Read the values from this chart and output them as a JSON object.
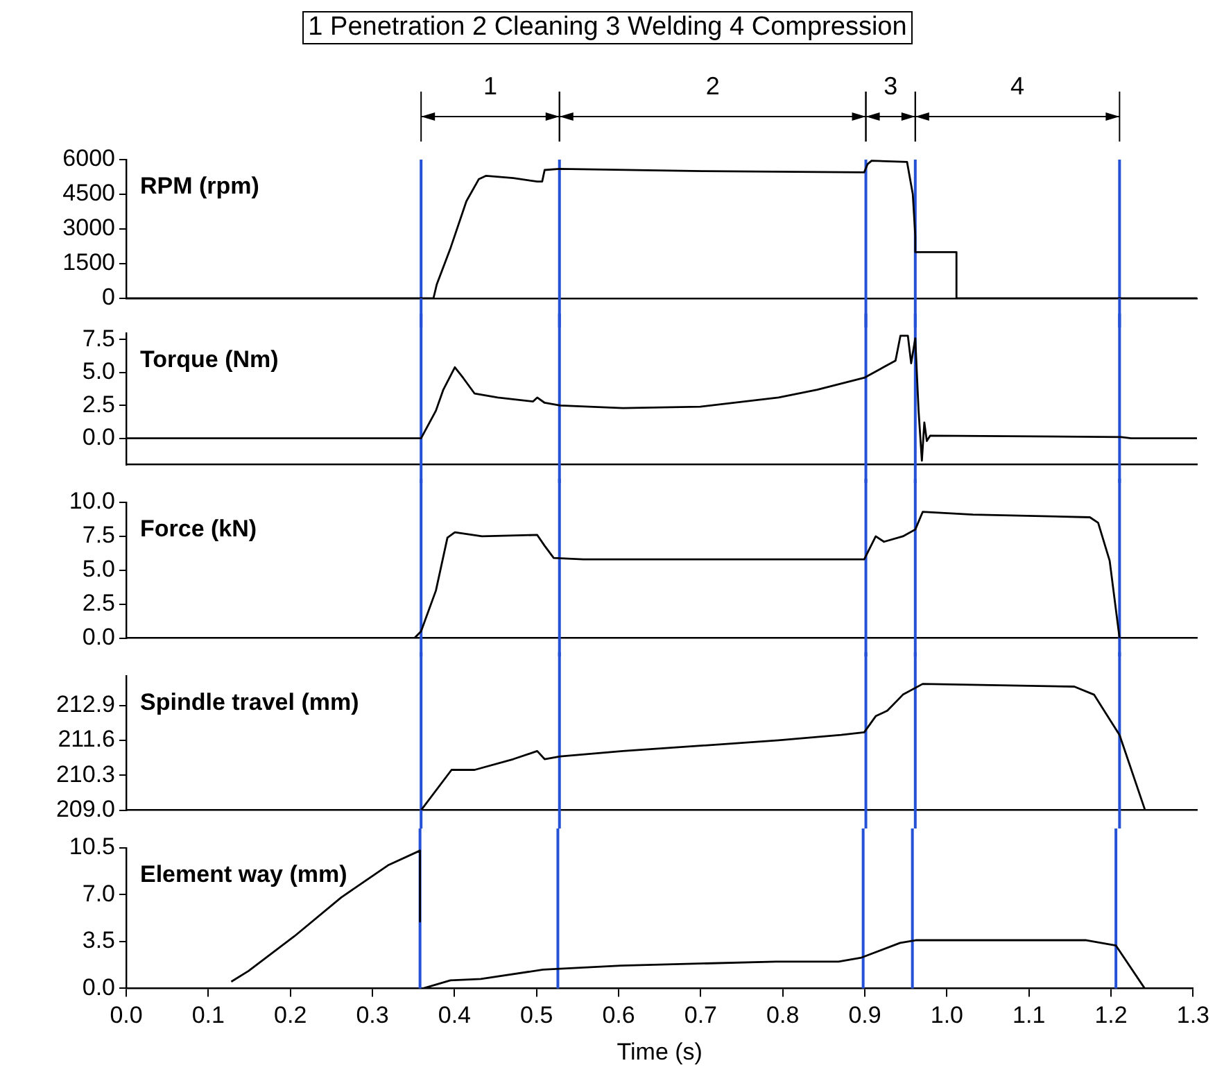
{
  "chart_data": [
    {
      "type": "line",
      "title": "1 Penetration  2 Cleaning   3 Welding   4 Compression",
      "ylabel": "RPM (rpm)",
      "xlim": [
        0,
        1.3
      ],
      "ylim": [
        0,
        6000
      ],
      "yticks": [
        0,
        1500,
        3000,
        4500,
        6000
      ],
      "tick_labels": "y",
      "legend": false,
      "marker": "none",
      "annotations": [
        "1",
        "2",
        "3",
        "4"
      ],
      "ref_lines": [
        {
          "axis": "x",
          "value": 0.358,
          "color": "#2451d6"
        },
        {
          "axis": "x",
          "value": 0.526,
          "color": "#2451d6"
        },
        {
          "axis": "x",
          "value": 0.898,
          "color": "#2451d6"
        },
        {
          "axis": "x",
          "value": 0.958,
          "color": "#2451d6"
        },
        {
          "axis": "x",
          "value": 1.206,
          "color": "#2451d6"
        }
      ],
      "series": [
        {
          "color": "#000000",
          "x": [
            0,
            0.373,
            0.377,
            0.394,
            0.413,
            0.428,
            0.437,
            0.47,
            0.499,
            0.505,
            0.508,
            0.526,
            0.7,
            0.896,
            0.9,
            0.905,
            0.948,
            0.955,
            0.958,
            0.958,
            1.008,
            1.008,
            1.3
          ],
          "values": [
            0,
            0,
            600,
            2200,
            4200,
            5150,
            5300,
            5200,
            5050,
            5050,
            5550,
            5600,
            5500,
            5450,
            5800,
            5950,
            5900,
            4500,
            2700,
            2000,
            2000,
            0,
            0
          ]
        }
      ]
    },
    {
      "type": "line",
      "ylabel": "Torque (Nm)",
      "xlim": [
        0,
        1.3
      ],
      "ylim": [
        -2,
        8
      ],
      "yticks": [
        {
          "value": 0,
          "label": "0.0"
        },
        {
          "value": 2.5,
          "label": "2.5"
        },
        {
          "value": 5,
          "label": "5.0"
        },
        {
          "value": 7.5,
          "label": "7.5"
        }
      ],
      "tick_labels": "y",
      "legend": false,
      "marker": "none",
      "ref_lines": [
        {
          "axis": "x",
          "value": 0.358,
          "color": "#2451d6"
        },
        {
          "axis": "x",
          "value": 0.526,
          "color": "#2451d6"
        },
        {
          "axis": "x",
          "value": 0.898,
          "color": "#2451d6"
        },
        {
          "axis": "x",
          "value": 0.958,
          "color": "#2451d6"
        },
        {
          "axis": "x",
          "value": 1.206,
          "color": "#2451d6"
        }
      ],
      "series": [
        {
          "color": "#000000",
          "x": [
            0,
            0.358,
            0.376,
            0.385,
            0.399,
            0.409,
            0.423,
            0.451,
            0.494,
            0.499,
            0.508,
            0.527,
            0.603,
            0.697,
            0.792,
            0.839,
            0.896,
            0.934,
            0.94,
            0.949,
            0.953,
            0.958,
            0.962,
            0.966,
            0.969,
            0.972,
            0.976,
            1.208,
            1.22,
            1.3
          ],
          "values": [
            0,
            0,
            2.1,
            3.7,
            5.4,
            4.6,
            3.4,
            3.1,
            2.8,
            3.1,
            2.7,
            2.5,
            2.3,
            2.4,
            3.1,
            3.7,
            4.6,
            5.9,
            7.8,
            7.8,
            5.7,
            7.6,
            2.1,
            -1.7,
            1.2,
            -0.2,
            0.2,
            0.1,
            0,
            0
          ]
        }
      ]
    },
    {
      "type": "line",
      "ylabel": "Force (kN)",
      "xlim": [
        0,
        1.3
      ],
      "ylim": [
        0,
        10
      ],
      "yticks": [
        {
          "value": 0,
          "label": "0.0"
        },
        {
          "value": 2.5,
          "label": "2.5"
        },
        {
          "value": 5,
          "label": "5.0"
        },
        {
          "value": 7.5,
          "label": "7.5"
        },
        {
          "value": 10,
          "label": "10.0"
        }
      ],
      "tick_labels": "y",
      "legend": false,
      "marker": "none",
      "ref_lines": [
        {
          "axis": "x",
          "value": 0.358,
          "color": "#2451d6"
        },
        {
          "axis": "x",
          "value": 0.526,
          "color": "#2451d6"
        },
        {
          "axis": "x",
          "value": 0.898,
          "color": "#2451d6"
        },
        {
          "axis": "x",
          "value": 0.958,
          "color": "#2451d6"
        },
        {
          "axis": "x",
          "value": 1.206,
          "color": "#2451d6"
        }
      ],
      "series": [
        {
          "color": "#000000",
          "x": [
            0,
            0.35,
            0.358,
            0.376,
            0.39,
            0.399,
            0.432,
            0.499,
            0.508,
            0.519,
            0.555,
            0.896,
            0.91,
            0.92,
            0.943,
            0.958,
            0.967,
            1.028,
            1.17,
            1.18,
            1.194,
            1.206,
            1.3
          ],
          "values": [
            0,
            0,
            0.5,
            3.5,
            7.4,
            7.8,
            7.5,
            7.6,
            6.8,
            5.9,
            5.8,
            5.8,
            7.5,
            7.1,
            7.5,
            8.0,
            9.3,
            9.1,
            8.9,
            8.5,
            5.7,
            0,
            0
          ]
        }
      ]
    },
    {
      "type": "line",
      "ylabel": "Spindle travel (mm)",
      "xlim": [
        0,
        1.3
      ],
      "ylim": [
        209,
        214
      ],
      "yticks": [
        {
          "value": 209,
          "label": "209.0"
        },
        {
          "value": 210.3,
          "label": "210.3"
        },
        {
          "value": 211.6,
          "label": "211.6"
        },
        {
          "value": 212.9,
          "label": "212.9"
        }
      ],
      "tick_labels": "y",
      "legend": false,
      "marker": "none",
      "ref_lines": [
        {
          "axis": "x",
          "value": 0.358,
          "color": "#2451d6"
        },
        {
          "axis": "x",
          "value": 0.526,
          "color": "#2451d6"
        },
        {
          "axis": "x",
          "value": 0.898,
          "color": "#2451d6"
        },
        {
          "axis": "x",
          "value": 0.958,
          "color": "#2451d6"
        },
        {
          "axis": "x",
          "value": 1.206,
          "color": "#2451d6"
        }
      ],
      "series": [
        {
          "color": "#000000",
          "x": [
            0.358,
            0.395,
            0.423,
            0.47,
            0.499,
            0.508,
            0.527,
            0.603,
            0.792,
            0.868,
            0.896,
            0.91,
            0.924,
            0.943,
            0.967,
            1.151,
            1.175,
            1.206,
            1.237
          ],
          "values": [
            209.0,
            210.5,
            210.5,
            210.9,
            211.2,
            210.9,
            211.0,
            211.2,
            211.6,
            211.8,
            211.9,
            212.5,
            212.7,
            213.3,
            213.7,
            213.6,
            213.3,
            211.8,
            209.0
          ]
        }
      ]
    },
    {
      "type": "line",
      "ylabel": "Element way (mm)",
      "xlabel": "Time (s)",
      "xlim": [
        0,
        1.3
      ],
      "ylim": [
        0,
        10.5
      ],
      "xticks": [
        {
          "value": 0,
          "label": "0.0"
        },
        {
          "value": 0.1,
          "label": "0.1"
        },
        {
          "value": 0.2,
          "label": "0.2"
        },
        {
          "value": 0.3,
          "label": "0.3"
        },
        {
          "value": 0.4,
          "label": "0.4"
        },
        {
          "value": 0.5,
          "label": "0.5"
        },
        {
          "value": 0.6,
          "label": "0.6"
        },
        {
          "value": 0.7,
          "label": "0.7"
        },
        {
          "value": 0.8,
          "label": "0.8"
        },
        {
          "value": 0.9,
          "label": "0.9"
        },
        {
          "value": 1,
          "label": "1.0"
        },
        {
          "value": 1.1,
          "label": "1.1"
        },
        {
          "value": 1.2,
          "label": "1.2"
        },
        {
          "value": 1.3,
          "label": "1.3"
        }
      ],
      "yticks": [
        {
          "value": 0,
          "label": "0.0"
        },
        {
          "value": 3.5,
          "label": "3.5"
        },
        {
          "value": 7,
          "label": "7.0"
        },
        {
          "value": 10.5,
          "label": "10.5"
        }
      ],
      "legend": false,
      "marker": "none",
      "ref_lines": [
        {
          "axis": "x",
          "value": 0.358,
          "color": "#2451d6"
        },
        {
          "axis": "x",
          "value": 0.526,
          "color": "#2451d6"
        },
        {
          "axis": "x",
          "value": 0.898,
          "color": "#2451d6"
        },
        {
          "axis": "x",
          "value": 0.958,
          "color": "#2451d6"
        },
        {
          "axis": "x",
          "value": 1.206,
          "color": "#2451d6"
        }
      ],
      "series": [
        {
          "color": "#000000",
          "x": [
            0.128,
            0.149,
            0.205,
            0.262,
            0.319,
            0.358,
            0.358,
            0.36,
            0.362,
            0.395,
            0.432,
            0.508,
            0.603,
            0.792,
            0.868,
            0.896,
            0.943,
            0.962,
            1.17,
            1.206,
            1.241
          ],
          "values": [
            0.5,
            1.3,
            3.9,
            6.8,
            9.2,
            10.3,
            5.0,
            null,
            0,
            0.6,
            0.7,
            1.4,
            1.7,
            2.0,
            2.0,
            2.3,
            3.4,
            3.6,
            3.6,
            3.2,
            0
          ]
        }
      ]
    }
  ]
}
